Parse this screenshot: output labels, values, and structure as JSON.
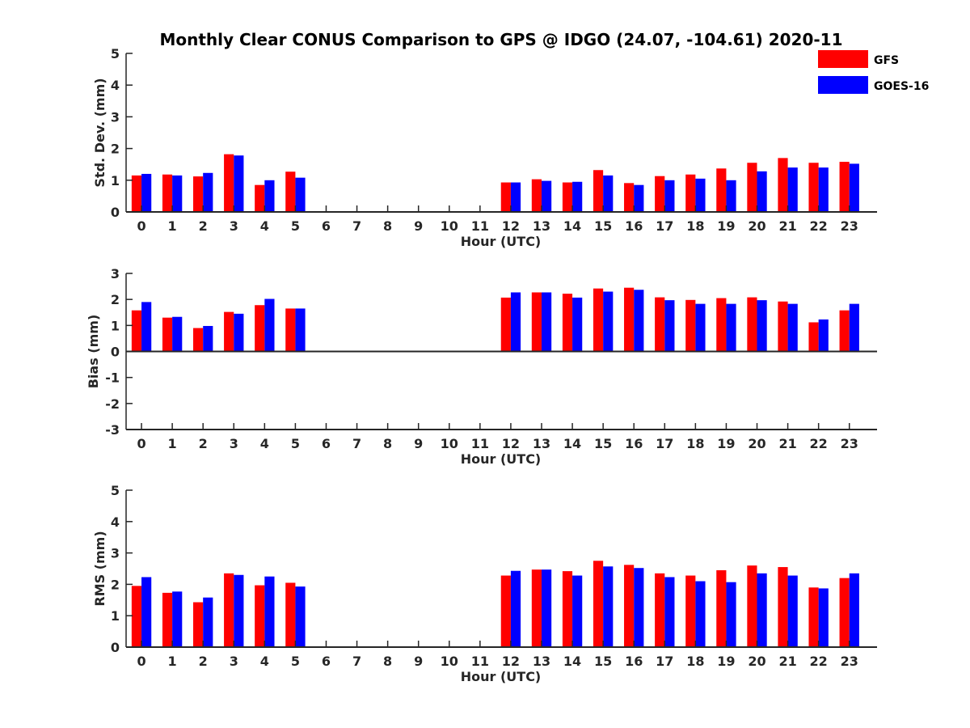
{
  "chart_data": [
    {
      "type": "bar",
      "title": "Monthly Clear CONUS Comparison to GPS @ IDGO (24.07, -104.61) 2020-11",
      "xlabel": "Hour (UTC)",
      "ylabel": "Std. Dev. (mm)",
      "ylim": [
        0,
        5
      ],
      "yticks": [
        "0",
        "1",
        "2",
        "3",
        "4",
        "5"
      ],
      "categories": [
        "0",
        "1",
        "2",
        "3",
        "4",
        "5",
        "6",
        "7",
        "8",
        "9",
        "10",
        "11",
        "12",
        "13",
        "14",
        "15",
        "16",
        "17",
        "18",
        "19",
        "20",
        "21",
        "22",
        "23"
      ],
      "legend": {
        "position": "top-right"
      },
      "series": [
        {
          "name": "GFS",
          "color": "#ff0000",
          "values": [
            1.15,
            1.18,
            1.12,
            1.82,
            0.85,
            1.27,
            null,
            null,
            null,
            null,
            null,
            null,
            0.93,
            1.03,
            0.93,
            1.32,
            0.91,
            1.13,
            1.18,
            1.37,
            1.55,
            1.7,
            1.55,
            1.58
          ]
        },
        {
          "name": "GOES-16",
          "color": "#0000ff",
          "values": [
            1.2,
            1.15,
            1.23,
            1.78,
            1.0,
            1.08,
            null,
            null,
            null,
            null,
            null,
            null,
            0.93,
            0.98,
            0.95,
            1.15,
            0.85,
            1.0,
            1.05,
            1.0,
            1.28,
            1.4,
            1.4,
            1.52
          ]
        }
      ]
    },
    {
      "type": "bar",
      "xlabel": "Hour (UTC)",
      "ylabel": "Bias (mm)",
      "ylim": [
        -3,
        3
      ],
      "yticks": [
        "-3",
        "-2",
        "-1",
        "0",
        "1",
        "2",
        "3"
      ],
      "categories": [
        "0",
        "1",
        "2",
        "3",
        "4",
        "5",
        "6",
        "7",
        "8",
        "9",
        "10",
        "11",
        "12",
        "13",
        "14",
        "15",
        "16",
        "17",
        "18",
        "19",
        "20",
        "21",
        "22",
        "23"
      ],
      "series": [
        {
          "name": "GFS",
          "color": "#ff0000",
          "values": [
            1.58,
            1.3,
            0.9,
            1.52,
            1.78,
            1.65,
            null,
            null,
            null,
            null,
            null,
            null,
            2.07,
            2.27,
            2.22,
            2.42,
            2.45,
            2.08,
            1.98,
            2.05,
            2.08,
            1.92,
            1.12,
            1.58
          ]
        },
        {
          "name": "GOES-16",
          "color": "#0000ff",
          "values": [
            1.9,
            1.33,
            0.98,
            1.45,
            2.02,
            1.65,
            null,
            null,
            null,
            null,
            null,
            null,
            2.27,
            2.27,
            2.07,
            2.3,
            2.37,
            1.97,
            1.83,
            1.83,
            1.97,
            1.83,
            1.23,
            1.83
          ]
        }
      ]
    },
    {
      "type": "bar",
      "xlabel": "Hour (UTC)",
      "ylabel": "RMS (mm)",
      "ylim": [
        0,
        5
      ],
      "yticks": [
        "0",
        "1",
        "2",
        "3",
        "4",
        "5"
      ],
      "categories": [
        "0",
        "1",
        "2",
        "3",
        "4",
        "5",
        "6",
        "7",
        "8",
        "9",
        "10",
        "11",
        "12",
        "13",
        "14",
        "15",
        "16",
        "17",
        "18",
        "19",
        "20",
        "21",
        "22",
        "23"
      ],
      "series": [
        {
          "name": "GFS",
          "color": "#ff0000",
          "values": [
            1.95,
            1.73,
            1.43,
            2.35,
            1.97,
            2.05,
            null,
            null,
            null,
            null,
            null,
            null,
            2.28,
            2.47,
            2.42,
            2.75,
            2.62,
            2.35,
            2.28,
            2.45,
            2.6,
            2.55,
            1.9,
            2.2
          ]
        },
        {
          "name": "GOES-16",
          "color": "#0000ff",
          "values": [
            2.23,
            1.77,
            1.58,
            2.3,
            2.25,
            1.93,
            null,
            null,
            null,
            null,
            null,
            null,
            2.43,
            2.47,
            2.28,
            2.57,
            2.52,
            2.23,
            2.1,
            2.07,
            2.35,
            2.28,
            1.87,
            2.35
          ]
        }
      ]
    }
  ]
}
